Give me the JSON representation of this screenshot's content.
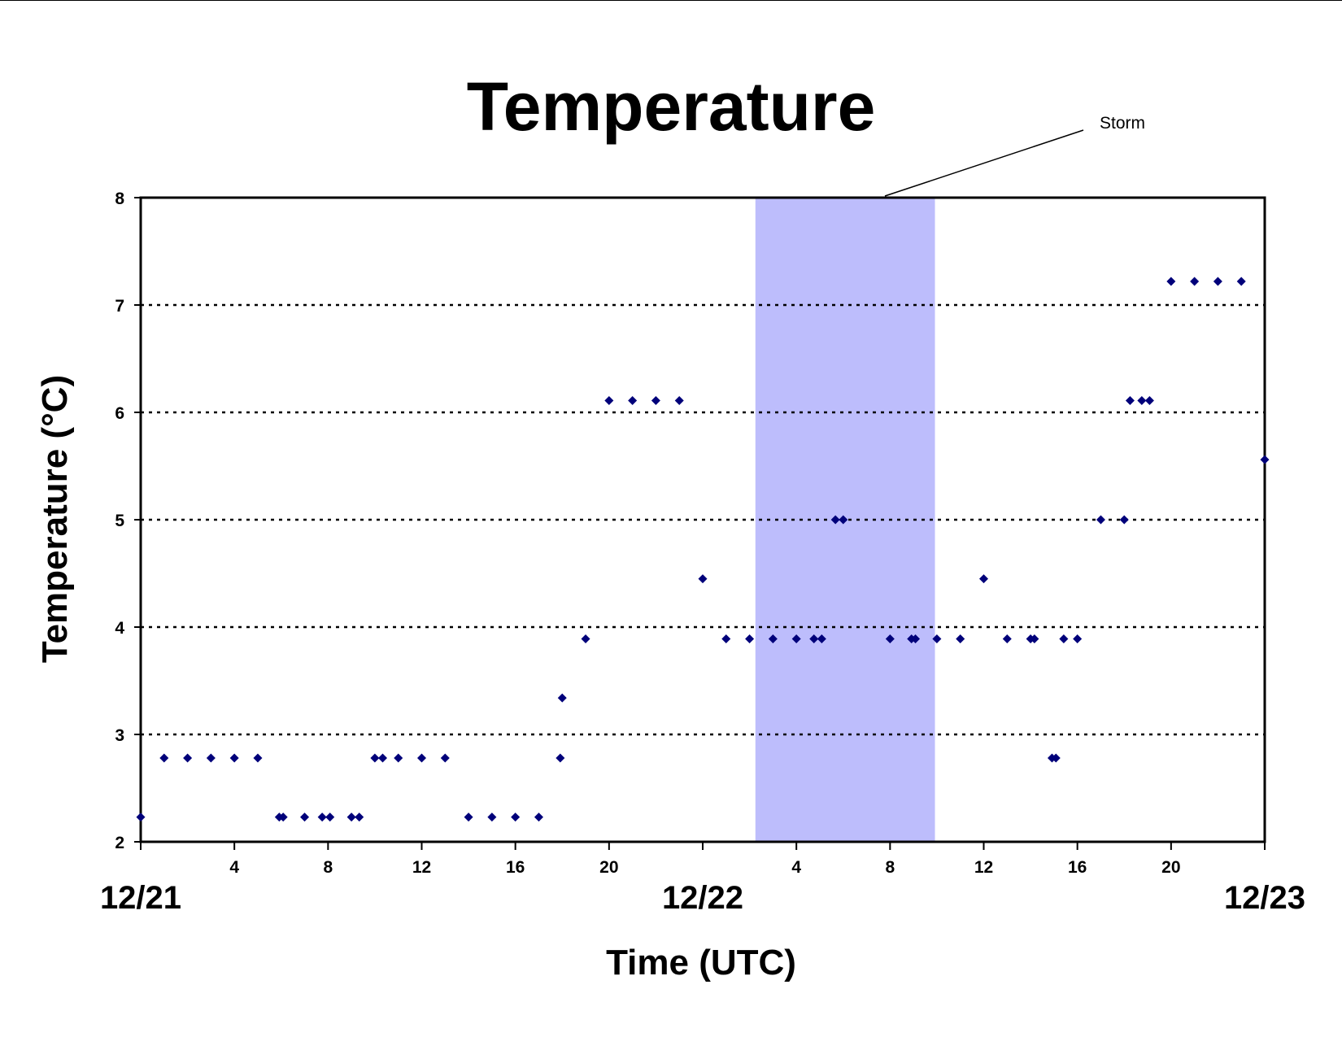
{
  "chart_data": {
    "type": "scatter",
    "title": "Temperature",
    "xlabel": "Time (UTC)",
    "ylabel": "Temperature (°C)",
    "x_unit": "hours UTC",
    "ylim": [
      2,
      8
    ],
    "xlim": [
      "12/21 00:00",
      "12/23 00:00"
    ],
    "yticks": [
      "2",
      "3",
      "4",
      "5",
      "6",
      "7",
      "8"
    ],
    "xticks_hour_labels": [
      "4",
      "8",
      "12",
      "16",
      "20",
      "4",
      "8",
      "12",
      "16",
      "20"
    ],
    "date_labels": [
      "12/21",
      "12/22",
      "12/23"
    ],
    "grid": "horizontal dotted at y = 3, 4, 5, 6, 7",
    "legend": "none",
    "marker_color": "#00007a",
    "shaded_region": {
      "label": "Storm",
      "from": "12/22 02:15",
      "to": "12/22 09:55",
      "color": "#bdbdfc"
    },
    "series": [
      {
        "points": [
          [
            "12/21 00:00",
            2.23
          ],
          [
            "12/21 01:00",
            2.78
          ],
          [
            "12/21 02:00",
            2.78
          ],
          [
            "12/21 03:00",
            2.78
          ],
          [
            "12/21 04:00",
            2.78
          ],
          [
            "12/21 05:00",
            2.78
          ],
          [
            "12/21 05:55",
            2.23
          ],
          [
            "12/21 06:05",
            2.23
          ],
          [
            "12/21 07:00",
            2.23
          ],
          [
            "12/21 07:45",
            2.23
          ],
          [
            "12/21 08:05",
            2.23
          ],
          [
            "12/21 09:00",
            2.23
          ],
          [
            "12/21 09:20",
            2.23
          ],
          [
            "12/21 10:00",
            2.78
          ],
          [
            "12/21 10:20",
            2.78
          ],
          [
            "12/21 11:00",
            2.78
          ],
          [
            "12/21 12:00",
            2.78
          ],
          [
            "12/21 13:00",
            2.78
          ],
          [
            "12/21 14:00",
            2.23
          ],
          [
            "12/21 15:00",
            2.23
          ],
          [
            "12/21 16:00",
            2.23
          ],
          [
            "12/21 17:00",
            2.23
          ],
          [
            "12/21 17:55",
            2.78
          ],
          [
            "12/21 18:00",
            3.34
          ],
          [
            "12/21 19:00",
            3.89
          ],
          [
            "12/21 20:00",
            6.11
          ],
          [
            "12/21 21:00",
            6.11
          ],
          [
            "12/21 22:00",
            6.11
          ],
          [
            "12/21 23:00",
            6.11
          ],
          [
            "12/22 00:00",
            4.45
          ],
          [
            "12/22 01:00",
            3.89
          ],
          [
            "12/22 02:00",
            3.89
          ],
          [
            "12/22 03:00",
            3.89
          ],
          [
            "12/22 04:00",
            3.89
          ],
          [
            "12/22 04:45",
            3.89
          ],
          [
            "12/22 05:05",
            3.89
          ],
          [
            "12/22 05:40",
            5.0
          ],
          [
            "12/22 06:00",
            5.0
          ],
          [
            "12/22 08:00",
            3.89
          ],
          [
            "12/22 08:55",
            3.89
          ],
          [
            "12/22 09:05",
            3.89
          ],
          [
            "12/22 10:00",
            3.89
          ],
          [
            "12/22 11:00",
            3.89
          ],
          [
            "12/22 12:00",
            4.45
          ],
          [
            "12/22 13:00",
            3.89
          ],
          [
            "12/22 14:00",
            3.89
          ],
          [
            "12/22 14:10",
            3.89
          ],
          [
            "12/22 14:55",
            2.78
          ],
          [
            "12/22 15:05",
            2.78
          ],
          [
            "12/22 15:25",
            3.89
          ],
          [
            "12/22 16:00",
            3.89
          ],
          [
            "12/22 17:00",
            5.0
          ],
          [
            "12/22 18:00",
            5.0
          ],
          [
            "12/22 18:15",
            6.11
          ],
          [
            "12/22 18:45",
            6.11
          ],
          [
            "12/22 19:05",
            6.11
          ],
          [
            "12/22 20:00",
            7.22
          ],
          [
            "12/22 21:00",
            7.22
          ],
          [
            "12/22 22:00",
            7.22
          ],
          [
            "12/22 23:00",
            7.22
          ],
          [
            "12/23 00:00",
            5.56
          ]
        ]
      }
    ]
  }
}
